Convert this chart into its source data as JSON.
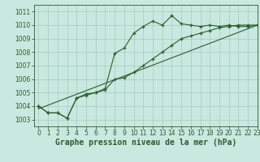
{
  "line1_x": [
    0,
    1,
    2,
    3,
    4,
    5,
    6,
    7,
    8,
    9,
    10,
    11,
    12,
    13,
    14,
    15,
    16,
    17,
    18,
    19,
    20,
    21,
    22,
    23
  ],
  "line1_y": [
    1004.0,
    1003.5,
    1003.5,
    1003.1,
    1004.6,
    1004.8,
    1005.0,
    1005.3,
    1007.9,
    1008.3,
    1009.4,
    1009.9,
    1010.3,
    1010.0,
    1010.7,
    1010.1,
    1010.0,
    1009.9,
    1010.0,
    1009.9,
    1010.0,
    1009.9,
    1009.9,
    1010.0
  ],
  "line2_x": [
    0,
    1,
    2,
    3,
    4,
    5,
    6,
    7,
    8,
    9,
    10,
    11,
    12,
    13,
    14,
    15,
    16,
    17,
    18,
    19,
    20,
    21,
    22,
    23
  ],
  "line2_y": [
    1004.0,
    1003.5,
    1003.5,
    1003.1,
    1004.6,
    1004.9,
    1005.0,
    1005.2,
    1006.0,
    1006.1,
    1006.5,
    1007.0,
    1007.5,
    1008.0,
    1008.5,
    1009.0,
    1009.2,
    1009.4,
    1009.6,
    1009.8,
    1009.9,
    1010.0,
    1010.0,
    1010.0
  ],
  "line3_x": [
    0,
    23
  ],
  "line3_y": [
    1003.8,
    1010.0
  ],
  "line_color": "#2d5c2d",
  "bg_color": "#c8e8e0",
  "grid_color": "#9dc4b8",
  "xlabel": "Graphe pression niveau de la mer (hPa)",
  "ylim": [
    1002.5,
    1011.5
  ],
  "xlim": [
    -0.5,
    23
  ],
  "yticks": [
    1003,
    1004,
    1005,
    1006,
    1007,
    1008,
    1009,
    1010,
    1011
  ],
  "xticks": [
    0,
    1,
    2,
    3,
    4,
    5,
    6,
    7,
    8,
    9,
    10,
    11,
    12,
    13,
    14,
    15,
    16,
    17,
    18,
    19,
    20,
    21,
    22,
    23
  ],
  "tick_fontsize": 5.5,
  "xlabel_fontsize": 7
}
